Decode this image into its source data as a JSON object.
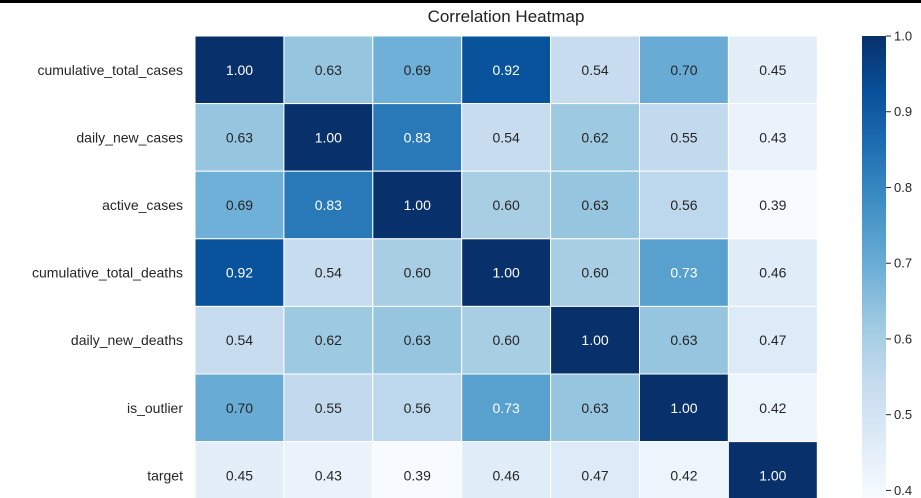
{
  "chart_data": {
    "type": "heatmap",
    "title": "Correlation Heatmap",
    "rows": [
      "cumulative_total_cases",
      "daily_new_cases",
      "active_cases",
      "cumulative_total_deaths",
      "daily_new_deaths",
      "is_outlier",
      "target"
    ],
    "columns_labelled": false,
    "values": [
      [
        1.0,
        0.63,
        0.69,
        0.92,
        0.54,
        0.7,
        0.45
      ],
      [
        0.63,
        1.0,
        0.83,
        0.54,
        0.62,
        0.55,
        0.43
      ],
      [
        0.69,
        0.83,
        1.0,
        0.6,
        0.63,
        0.56,
        0.39
      ],
      [
        0.92,
        0.54,
        0.6,
        1.0,
        0.6,
        0.73,
        0.46
      ],
      [
        0.54,
        0.62,
        0.63,
        0.6,
        1.0,
        0.63,
        0.47
      ],
      [
        0.7,
        0.55,
        0.56,
        0.73,
        0.63,
        1.0,
        0.42
      ],
      [
        0.45,
        0.43,
        0.39,
        0.46,
        0.47,
        0.42,
        1.0
      ]
    ],
    "value_format": "0.00",
    "colormap": "Blues",
    "color_range": [
      0.39,
      1.0
    ],
    "colorbar": {
      "ticks": [
        1.0,
        0.9,
        0.8,
        0.7,
        0.6,
        0.5,
        0.4
      ],
      "tick_labels": [
        "1.0",
        "0.9",
        "0.8",
        "0.7",
        "0.6",
        "0.5",
        "0.4"
      ],
      "placement": "right"
    },
    "cell_border_color": "#ffffff"
  }
}
